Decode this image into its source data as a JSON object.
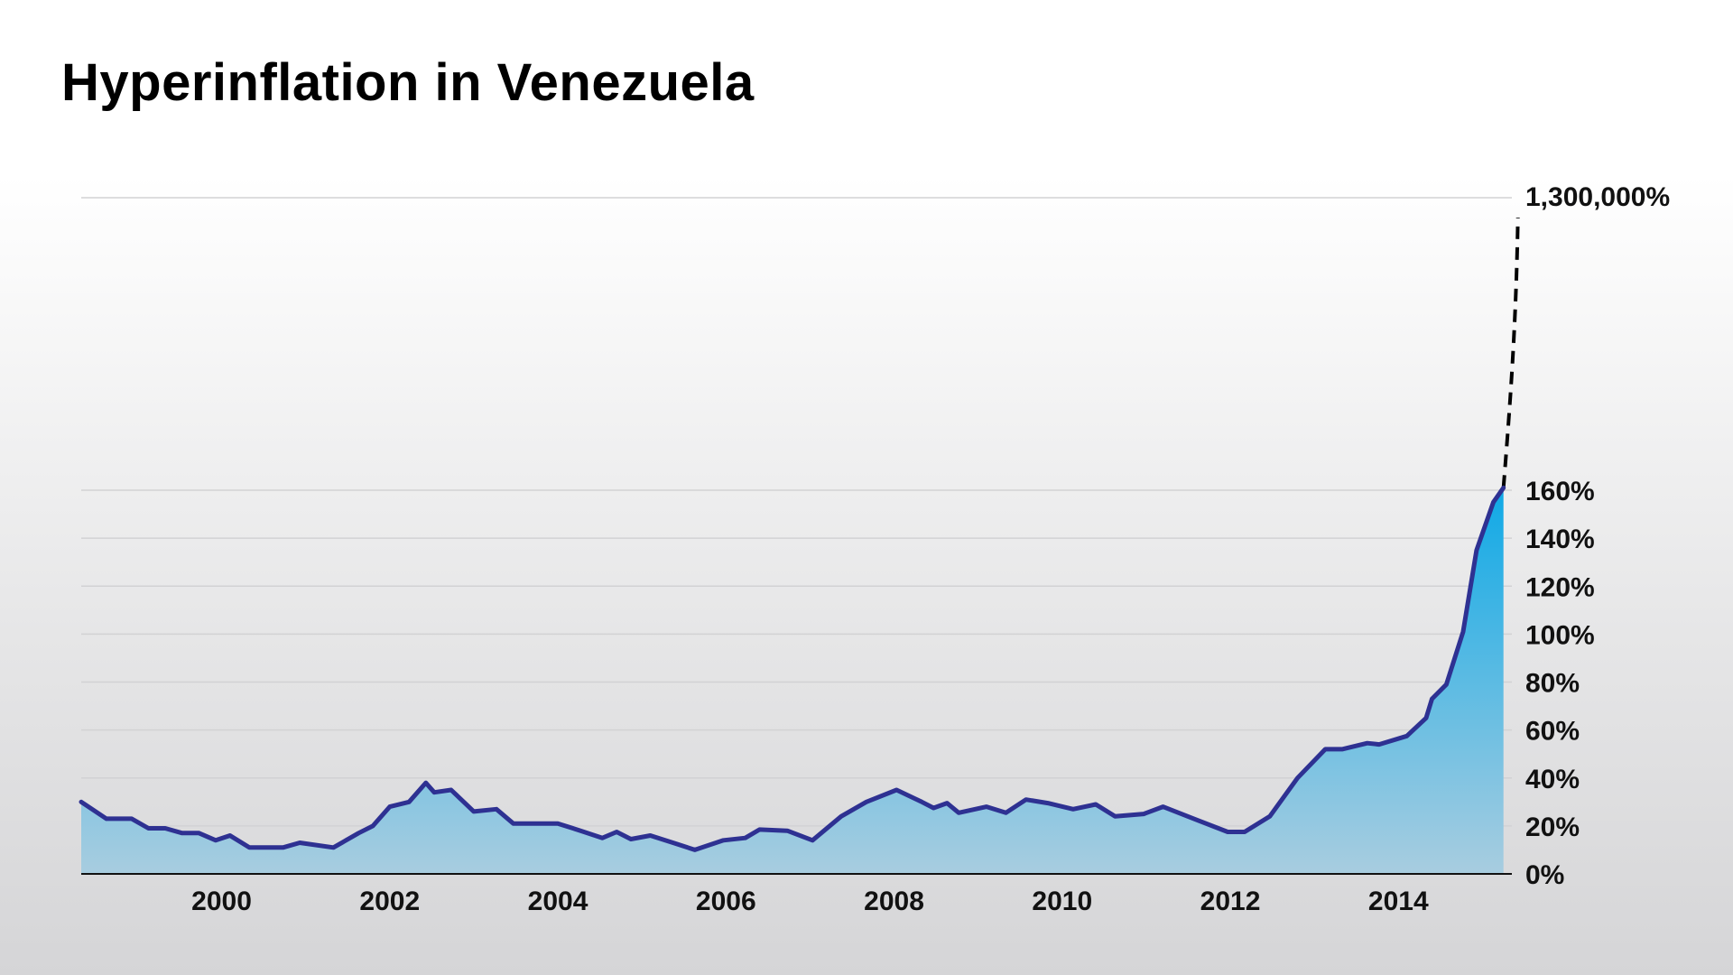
{
  "chart_data": {
    "type": "area",
    "title": "Hyperinflation in Venezuela",
    "xlabel": "",
    "ylabel": "",
    "x_ticks": [
      "2000",
      "2002",
      "2004",
      "2006",
      "2008",
      "2010",
      "2012",
      "2014"
    ],
    "x_tick_values": [
      2000,
      2002,
      2004,
      2006,
      2008,
      2010,
      2012,
      2014
    ],
    "xlim": [
      1998.33,
      2015.35
    ],
    "ylim": [
      0,
      160
    ],
    "y_ticks": [
      "0%",
      "20%",
      "40%",
      "60%",
      "80%",
      "100%",
      "120%",
      "140%",
      "160%"
    ],
    "y_tick_values": [
      0,
      20,
      40,
      60,
      80,
      100,
      120,
      140,
      160
    ],
    "break_label": "1,300,000%",
    "grid": true,
    "legend": "none",
    "colors": {
      "line": "#2e3192",
      "fill_top": "#0fa9e6",
      "fill_bottom": "#a8cde0",
      "projection": "#000000"
    },
    "series": [
      {
        "x": [
          1998.33,
          1998.63,
          1998.93,
          1999.13,
          1999.33,
          1999.53,
          1999.73,
          1999.93,
          2000.1,
          2000.33,
          2000.73,
          2000.93,
          2001.33,
          2001.63,
          2001.8,
          2002.0,
          2002.23,
          2002.43,
          2002.53,
          2002.73,
          2003.0,
          2003.27,
          2003.47,
          2003.73,
          2004.0,
          2004.27,
          2004.53,
          2004.7,
          2004.87,
          2005.1,
          2005.37,
          2005.63,
          2005.97,
          2006.23,
          2006.4,
          2006.73,
          2007.03,
          2007.37,
          2007.67,
          2008.03,
          2008.33,
          2008.47,
          2008.63,
          2008.77,
          2009.1,
          2009.33,
          2009.57,
          2009.83,
          2010.13,
          2010.4,
          2010.63,
          2010.97,
          2011.2,
          2011.6,
          2011.97,
          2012.17,
          2012.47,
          2012.8,
          2013.13,
          2013.33,
          2013.63,
          2013.77,
          2014.1,
          2014.33,
          2014.4,
          2014.57,
          2014.77,
          2014.93,
          2015.13,
          2015.25
        ],
        "y": [
          30,
          23,
          23,
          19,
          19,
          17,
          17,
          14,
          16,
          11,
          11,
          13,
          11,
          17,
          20,
          28,
          30,
          38,
          34,
          35,
          26,
          27,
          21,
          21,
          21,
          18,
          15,
          17.5,
          14.5,
          16,
          13,
          10,
          14,
          15,
          18.5,
          18,
          14,
          24,
          30,
          35,
          30,
          27.5,
          29.5,
          25.5,
          28,
          25.5,
          31,
          29.5,
          27,
          29,
          24,
          25,
          28,
          22.5,
          17.5,
          17.5,
          24,
          40,
          52,
          52,
          54.5,
          54,
          57.5,
          65,
          73,
          79,
          101,
          135,
          155,
          161
        ]
      }
    ],
    "projection": {
      "from": [
        2015.25,
        161
      ],
      "to_label": "1,300,000%"
    }
  }
}
